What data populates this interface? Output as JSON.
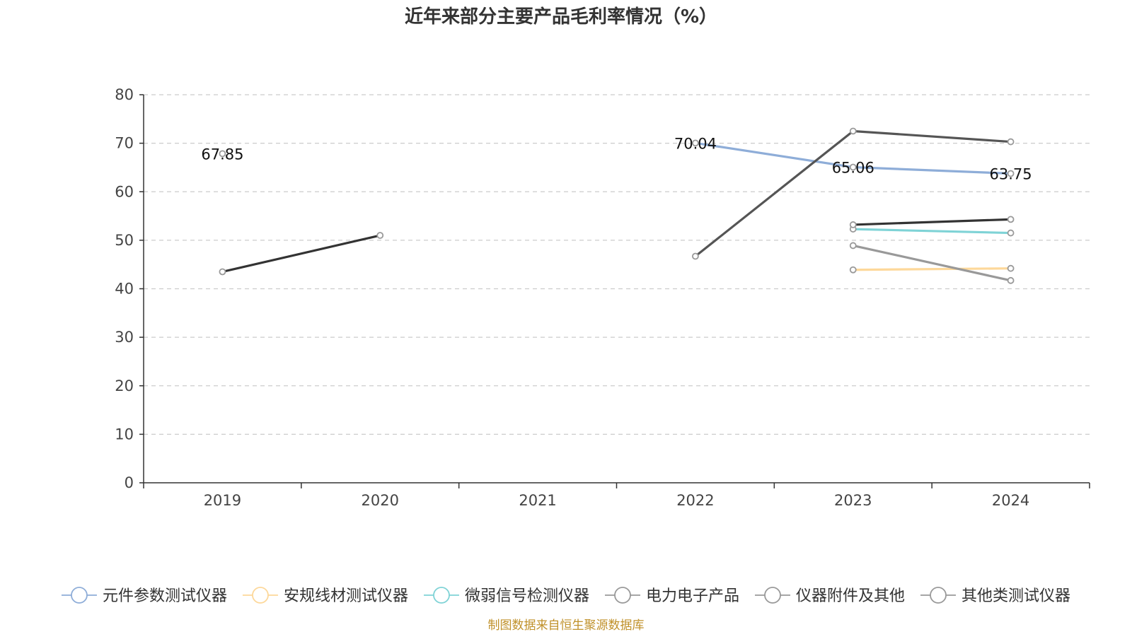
{
  "chart_data": {
    "type": "line",
    "title": "近年来部分主要产品毛利率情况（%）",
    "xlabel": "",
    "ylabel": "",
    "categories": [
      "2019",
      "2020",
      "2021",
      "2022",
      "2023",
      "2024"
    ],
    "ylim": [
      0,
      80
    ],
    "yticks": [
      0,
      10,
      20,
      30,
      40,
      50,
      60,
      70,
      80
    ],
    "grid": true,
    "legend_position": "bottom",
    "series": [
      {
        "name": "元件参数测试仪器",
        "color": "#8eadd8",
        "values": [
          67.85,
          null,
          null,
          70.04,
          65.06,
          63.75
        ],
        "labels": [
          "67.85",
          null,
          null,
          "70.04",
          "65.06",
          "63.75"
        ]
      },
      {
        "name": "安规线材测试仪器",
        "color": "#fdd89a",
        "values": [
          null,
          null,
          null,
          null,
          43.9,
          44.2
        ],
        "labels": [
          null,
          null,
          null,
          null,
          null,
          null
        ]
      },
      {
        "name": "微弱信号检测仪器",
        "color": "#7fd3d6",
        "values": [
          null,
          null,
          null,
          null,
          52.3,
          51.5
        ],
        "labels": [
          null,
          null,
          null,
          null,
          null,
          null
        ]
      },
      {
        "name": "电力电子产品",
        "color": "#555555",
        "values": [
          null,
          null,
          null,
          46.7,
          72.5,
          70.3
        ],
        "labels": [
          null,
          null,
          null,
          null,
          null,
          null
        ]
      },
      {
        "name": "仪器附件及其他",
        "color": "#333333",
        "values": [
          43.5,
          51.0,
          null,
          null,
          53.2,
          54.3
        ],
        "labels": [
          null,
          null,
          null,
          null,
          null,
          null
        ]
      },
      {
        "name": "其他类测试仪器",
        "color": "#999999",
        "values": [
          null,
          null,
          null,
          null,
          48.9,
          41.7
        ],
        "labels": [
          null,
          null,
          null,
          null,
          null,
          null
        ]
      }
    ],
    "source": "制图数据来自恒生聚源数据库"
  }
}
